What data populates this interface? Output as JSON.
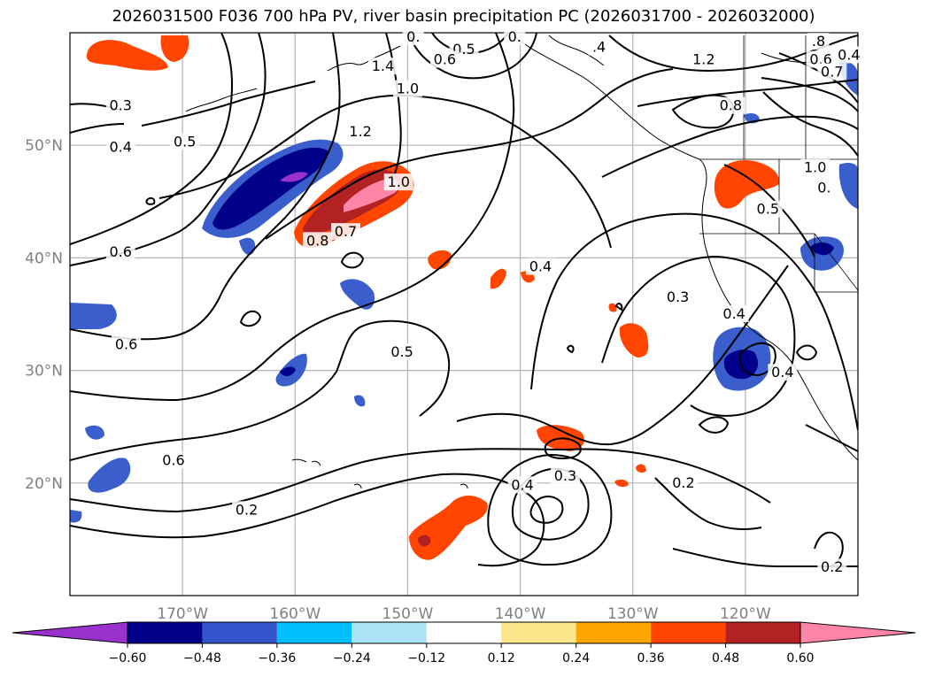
{
  "title": "2026031500 F036 700 hPa PV, river basin precipitation PC (2026031700 - 2026032000)",
  "map": {
    "lon_range": [
      -180,
      -110
    ],
    "lat_range": [
      10,
      60
    ],
    "lat_ticks": [
      {
        "value": 20,
        "label": "20°N"
      },
      {
        "value": 30,
        "label": "30°N"
      },
      {
        "value": 40,
        "label": "40°N"
      },
      {
        "value": 50,
        "label": "50°N"
      }
    ],
    "lon_ticks": [
      {
        "value": -170,
        "label": "170°W"
      },
      {
        "value": -160,
        "label": "160°W"
      },
      {
        "value": -150,
        "label": "150°W"
      },
      {
        "value": -140,
        "label": "140°W"
      },
      {
        "value": -130,
        "label": "130°W"
      },
      {
        "value": -120,
        "label": "120°W"
      }
    ],
    "contour_labels": [
      {
        "text": "0.3",
        "lon": -175.5,
        "lat": 53.5
      },
      {
        "text": "0.4",
        "lon": -175.5,
        "lat": 49.8
      },
      {
        "text": "0.5",
        "lon": -169.8,
        "lat": 50.3
      },
      {
        "text": "0.6",
        "lon": -175.5,
        "lat": 40.5
      },
      {
        "text": "0.6",
        "lon": -175.0,
        "lat": 32.3
      },
      {
        "text": "0.6",
        "lon": -170.8,
        "lat": 22.0
      },
      {
        "text": "0.2",
        "lon": -164.3,
        "lat": 17.6
      },
      {
        "text": "0.8",
        "lon": -158.0,
        "lat": 41.5
      },
      {
        "text": "0.7",
        "lon": -155.5,
        "lat": 42.3
      },
      {
        "text": "1.0",
        "lon": -150.8,
        "lat": 46.7
      },
      {
        "text": "1.2",
        "lon": -154.2,
        "lat": 51.2
      },
      {
        "text": "1.4",
        "lon": -152.2,
        "lat": 57.0
      },
      {
        "text": "1.0",
        "lon": -150.0,
        "lat": 55.0
      },
      {
        "text": "0.",
        "lon": -149.5,
        "lat": 59.6
      },
      {
        "text": "0.5",
        "lon": -145.0,
        "lat": 58.5
      },
      {
        "text": "0.6",
        "lon": -146.7,
        "lat": 57.6
      },
      {
        "text": "0.",
        "lon": -140.5,
        "lat": 59.6
      },
      {
        "text": "0.4",
        "lon": -138.2,
        "lat": 39.2
      },
      {
        "text": "0.5",
        "lon": -150.5,
        "lat": 31.6
      },
      {
        "text": "0.4",
        "lon": -139.8,
        "lat": 19.8
      },
      {
        "text": "0.3",
        "lon": -136.0,
        "lat": 20.6
      },
      {
        "text": "0.3",
        "lon": -126.0,
        "lat": 36.5
      },
      {
        "text": "0.2",
        "lon": -125.5,
        "lat": 20.0
      },
      {
        "text": ".4",
        "lon": -133.0,
        "lat": 58.7
      },
      {
        "text": "1.2",
        "lon": -123.7,
        "lat": 57.6
      },
      {
        "text": "0.8",
        "lon": -121.3,
        "lat": 53.5
      },
      {
        "text": ".8",
        "lon": -113.5,
        "lat": 59.2
      },
      {
        "text": "0.6",
        "lon": -113.3,
        "lat": 57.6
      },
      {
        "text": "0.7",
        "lon": -112.3,
        "lat": 56.5
      },
      {
        "text": "0.4",
        "lon": -110.8,
        "lat": 58.0
      },
      {
        "text": "1.0",
        "lon": -113.8,
        "lat": 48.0
      },
      {
        "text": "0.",
        "lon": -113.0,
        "lat": 46.2
      },
      {
        "text": "0.5",
        "lon": -118.0,
        "lat": 44.3
      },
      {
        "text": "0.4",
        "lon": -121.0,
        "lat": 35.0
      },
      {
        "text": "0.4",
        "lon": -116.7,
        "lat": 29.8
      },
      {
        "text": "0.2",
        "lon": -112.3,
        "lat": 12.5
      }
    ]
  },
  "colorbar": {
    "levels": [
      "−0.60",
      "−0.48",
      "−0.36",
      "−0.24",
      "−0.12",
      "0.12",
      "0.24",
      "0.36",
      "0.48",
      "0.60"
    ],
    "colors": [
      "#9932cc",
      "#00008b",
      "#3355cc",
      "#00bfff",
      "#ade3f7",
      "#ffffff",
      "#fde68a",
      "#ffa500",
      "#ff4500",
      "#b22222",
      "#ff85a8"
    ]
  }
}
